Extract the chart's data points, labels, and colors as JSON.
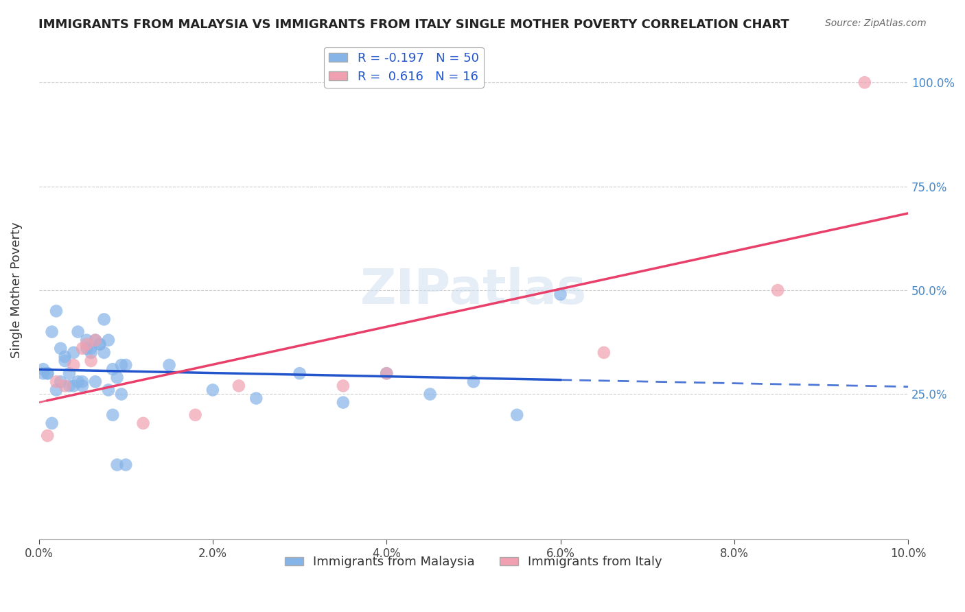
{
  "title": "IMMIGRANTS FROM MALAYSIA VS IMMIGRANTS FROM ITALY SINGLE MOTHER POVERTY CORRELATION CHART",
  "source": "Source: ZipAtlas.com",
  "xlabel_bottom": "",
  "ylabel": "Single Mother Poverty",
  "x_tick_labels": [
    "0.0%",
    "2.0%",
    "4.0%",
    "6.0%",
    "8.0%",
    "10.0%"
  ],
  "x_tick_vals": [
    0.0,
    2.0,
    4.0,
    6.0,
    8.0,
    10.0
  ],
  "y_tick_labels": [
    "25.0%",
    "50.0%",
    "75.0%",
    "100.0%"
  ],
  "y_tick_vals": [
    25.0,
    50.0,
    75.0,
    100.0
  ],
  "xlim": [
    0.0,
    10.0
  ],
  "ylim": [
    -10.0,
    110.0
  ],
  "legend_blue_label": "R = -0.197   N = 50",
  "legend_pink_label": "R =  0.616   N = 16",
  "watermark": "ZIPatlas",
  "malaysia_color": "#85b4e8",
  "italy_color": "#f0a0b0",
  "malaysia_trend_color": "#2255cc",
  "italy_trend_color": "#e8406a",
  "malaysia_x": [
    0.1,
    0.2,
    0.3,
    0.4,
    0.5,
    0.6,
    0.7,
    0.8,
    0.9,
    1.0,
    0.05,
    0.15,
    0.25,
    0.35,
    0.45,
    0.55,
    0.65,
    0.75,
    0.85,
    0.95,
    0.1,
    0.2,
    0.3,
    0.4,
    0.5,
    0.6,
    0.7,
    0.8,
    0.9,
    1.0,
    0.05,
    0.15,
    0.25,
    0.35,
    0.45,
    0.55,
    0.65,
    0.75,
    0.85,
    0.95,
    1.5,
    2.0,
    2.5,
    3.0,
    3.5,
    4.0,
    4.5,
    5.0,
    5.5,
    6.0
  ],
  "malaysia_y": [
    30.0,
    45.0,
    33.0,
    27.0,
    28.0,
    35.0,
    37.0,
    38.0,
    29.0,
    32.0,
    31.0,
    40.0,
    36.0,
    27.0,
    28.0,
    38.0,
    38.0,
    35.0,
    31.0,
    32.0,
    30.0,
    26.0,
    34.0,
    35.0,
    27.0,
    36.0,
    37.0,
    26.0,
    8.0,
    8.0,
    30.0,
    18.0,
    28.0,
    30.0,
    40.0,
    36.0,
    28.0,
    43.0,
    20.0,
    25.0,
    32.0,
    26.0,
    24.0,
    30.0,
    23.0,
    30.0,
    25.0,
    28.0,
    20.0,
    49.0
  ],
  "italy_x": [
    0.1,
    0.2,
    0.3,
    0.4,
    0.5,
    0.55,
    0.6,
    0.65,
    1.2,
    1.8,
    2.3,
    3.5,
    4.0,
    6.5,
    8.5,
    9.5
  ],
  "italy_y": [
    15.0,
    28.0,
    27.0,
    32.0,
    36.0,
    37.0,
    33.0,
    38.0,
    18.0,
    20.0,
    27.0,
    27.0,
    30.0,
    35.0,
    50.0,
    100.0
  ],
  "malaysia_r": -0.197,
  "italy_r": 0.616,
  "malaysia_n": 50,
  "italy_n": 16
}
